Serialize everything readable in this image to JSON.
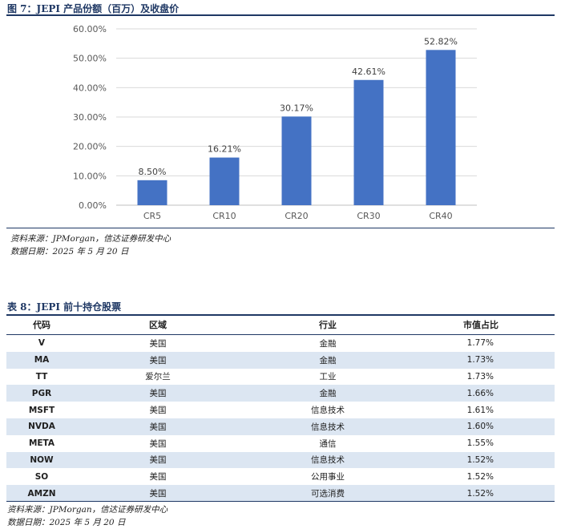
{
  "figure": {
    "title": "图 7：JEPI 产品份额（百万）及收盘价",
    "source": "资料来源：JPMorgan，信达证券研发中心",
    "date": "数据日期：2025 年 5 月 20 日"
  },
  "chart_data": {
    "type": "bar",
    "categories": [
      "CR5",
      "CR10",
      "CR20",
      "CR30",
      "CR40"
    ],
    "values": [
      8.5,
      16.21,
      30.17,
      42.61,
      52.82
    ],
    "value_labels": [
      "8.50%",
      "16.21%",
      "30.17%",
      "42.61%",
      "52.82%"
    ],
    "ylim": [
      0,
      60
    ],
    "yticks": [
      0,
      10,
      20,
      30,
      40,
      50,
      60
    ],
    "ytick_labels": [
      "0.00%",
      "10.00%",
      "20.00%",
      "30.00%",
      "40.00%",
      "50.00%",
      "60.00%"
    ],
    "grid": true,
    "bar_color": "#4472c4"
  },
  "table": {
    "title": "表 8：JEPI 前十持仓股票",
    "headers": [
      "代码",
      "区域",
      "行业",
      "市值占比"
    ],
    "rows": [
      [
        "V",
        "美国",
        "金融",
        "1.77%"
      ],
      [
        "MA",
        "美国",
        "金融",
        "1.73%"
      ],
      [
        "TT",
        "爱尔兰",
        "工业",
        "1.73%"
      ],
      [
        "PGR",
        "美国",
        "金融",
        "1.66%"
      ],
      [
        "MSFT",
        "美国",
        "信息技术",
        "1.61%"
      ],
      [
        "NVDA",
        "美国",
        "信息技术",
        "1.60%"
      ],
      [
        "META",
        "美国",
        "通信",
        "1.55%"
      ],
      [
        "NOW",
        "美国",
        "信息技术",
        "1.52%"
      ],
      [
        "SO",
        "美国",
        "公用事业",
        "1.52%"
      ],
      [
        "AMZN",
        "美国",
        "可选消费",
        "1.52%"
      ]
    ],
    "source": "资料来源：JPMorgan，信达证券研发中心",
    "date": "数据日期：2025 年 5 月 20 日",
    "stripe_color": "#dce6f2"
  }
}
